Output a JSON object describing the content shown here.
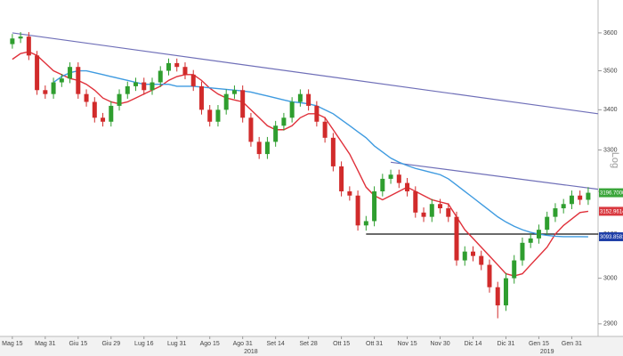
{
  "chart_data": {
    "type": "candlestick",
    "log_scale": true,
    "grid": false,
    "axis_title": "Log",
    "ylim": [
      2873,
      3689
    ],
    "yticks": [
      2900,
      3000,
      3100,
      3200,
      3300,
      3400,
      3500,
      3600
    ],
    "xlim": [
      -1.5,
      71.2
    ],
    "categories": [
      "Mag 15",
      null,
      null,
      null,
      "Mag 31",
      null,
      null,
      null,
      "Giu 15",
      null,
      null,
      null,
      "Giu 29",
      null,
      null,
      null,
      "Lug 16",
      null,
      null,
      null,
      "Lug 31",
      null,
      null,
      null,
      "Ago 15",
      null,
      null,
      null,
      "Ago 31",
      null,
      null,
      null,
      "Set 14",
      null,
      null,
      null,
      "Set 28",
      null,
      null,
      null,
      "Ott 15",
      null,
      null,
      null,
      "Ott 31",
      null,
      null,
      null,
      "Nov 15",
      null,
      null,
      null,
      "Nov 30",
      null,
      null,
      null,
      "Dic 14",
      null,
      null,
      null,
      "Dic 31",
      null,
      null,
      null,
      "Gen 15",
      null,
      null,
      null,
      "Gen 31",
      null,
      null
    ],
    "year_labels": [
      {
        "value": 29,
        "label": "2018"
      },
      {
        "value": 65,
        "label": "2019"
      }
    ],
    "up_color": "#2f9e2f",
    "down_color": "#d12b2b",
    "open": [
      3570,
      3585,
      3590,
      3540,
      3450,
      3440,
      3470,
      3480,
      3510,
      3440,
      3420,
      3380,
      3370,
      3410,
      3440,
      3460,
      3470,
      3450,
      3470,
      3500,
      3520,
      3510,
      3490,
      3460,
      3400,
      3370,
      3400,
      3440,
      3450,
      3380,
      3320,
      3290,
      3320,
      3360,
      3380,
      3420,
      3440,
      3410,
      3370,
      3330,
      3260,
      3200,
      3190,
      3120,
      3130,
      3200,
      3230,
      3240,
      3220,
      3200,
      3150,
      3140,
      3170,
      3160,
      3140,
      3040,
      3060,
      3050,
      3030,
      2980,
      2940,
      3000,
      3040,
      3080,
      3090,
      3110,
      3140,
      3160,
      3170,
      3190,
      3180
    ],
    "high": [
      3597,
      3602,
      3602,
      3552,
      3462,
      3482,
      3492,
      3522,
      3522,
      3452,
      3432,
      3392,
      3422,
      3452,
      3472,
      3482,
      3482,
      3482,
      3512,
      3532,
      3532,
      3522,
      3502,
      3472,
      3412,
      3412,
      3452,
      3462,
      3462,
      3392,
      3332,
      3332,
      3372,
      3392,
      3432,
      3452,
      3452,
      3422,
      3382,
      3342,
      3272,
      3212,
      3202,
      3142,
      3212,
      3242,
      3252,
      3252,
      3232,
      3212,
      3162,
      3182,
      3182,
      3172,
      3152,
      3072,
      3072,
      3062,
      3042,
      2992,
      3012,
      3052,
      3092,
      3102,
      3122,
      3152,
      3172,
      3182,
      3202,
      3202,
      3210
    ],
    "low": [
      3558,
      3573,
      3528,
      3438,
      3428,
      3428,
      3458,
      3468,
      3428,
      3408,
      3368,
      3358,
      3358,
      3398,
      3428,
      3448,
      3438,
      3438,
      3458,
      3488,
      3498,
      3478,
      3448,
      3388,
      3358,
      3358,
      3388,
      3428,
      3368,
      3308,
      3278,
      3278,
      3308,
      3348,
      3368,
      3408,
      3398,
      3358,
      3318,
      3248,
      3188,
      3178,
      3108,
      3108,
      3118,
      3188,
      3218,
      3208,
      3188,
      3138,
      3128,
      3128,
      3148,
      3128,
      3028,
      3028,
      3038,
      3018,
      2968,
      2912,
      2928,
      2988,
      3028,
      3068,
      3078,
      3098,
      3128,
      3148,
      3158,
      3168,
      3168
    ],
    "close": [
      3585,
      3590,
      3540,
      3450,
      3440,
      3470,
      3480,
      3510,
      3440,
      3420,
      3380,
      3370,
      3410,
      3440,
      3460,
      3470,
      3450,
      3470,
      3500,
      3520,
      3510,
      3490,
      3460,
      3400,
      3370,
      3400,
      3440,
      3450,
      3380,
      3320,
      3290,
      3320,
      3360,
      3380,
      3420,
      3440,
      3410,
      3370,
      3330,
      3260,
      3200,
      3190,
      3120,
      3130,
      3200,
      3230,
      3240,
      3220,
      3200,
      3150,
      3140,
      3170,
      3160,
      3140,
      3040,
      3060,
      3050,
      3030,
      2980,
      2940,
      3000,
      3040,
      3080,
      3090,
      3110,
      3140,
      3160,
      3170,
      3190,
      3180,
      3196.7
    ],
    "series": [
      {
        "color": "#e0303a",
        "values": [
          3530,
          3545,
          3550,
          3540,
          3520,
          3500,
          3490,
          3480,
          3475,
          3465,
          3450,
          3430,
          3420,
          3415,
          3420,
          3430,
          3440,
          3450,
          3460,
          3475,
          3485,
          3490,
          3490,
          3475,
          3455,
          3440,
          3430,
          3425,
          3420,
          3400,
          3380,
          3360,
          3350,
          3350,
          3360,
          3380,
          3390,
          3390,
          3380,
          3350,
          3320,
          3290,
          3250,
          3210,
          3190,
          3180,
          3190,
          3200,
          3210,
          3200,
          3190,
          3180,
          3175,
          3170,
          3140,
          3110,
          3090,
          3070,
          3050,
          3030,
          3010,
          3005,
          3010,
          3030,
          3050,
          3070,
          3100,
          3120,
          3135,
          3150,
          3152.96
        ]
      },
      {
        "color": "#3f9be0",
        "values": [
          null,
          null,
          null,
          null,
          null,
          3470,
          3485,
          3495,
          3500,
          3500,
          3495,
          3490,
          3485,
          3480,
          3475,
          3470,
          3465,
          3465,
          3465,
          3465,
          3460,
          3460,
          3460,
          3458,
          3456,
          3454,
          3452,
          3450,
          3448,
          3445,
          3440,
          3435,
          3430,
          3425,
          3420,
          3418,
          3415,
          3410,
          3400,
          3390,
          3375,
          3360,
          3345,
          3330,
          3310,
          3295,
          3280,
          3270,
          3262,
          3255,
          3250,
          3245,
          3240,
          3230,
          3215,
          3200,
          3185,
          3170,
          3155,
          3140,
          3128,
          3118,
          3110,
          3104,
          3100,
          3097,
          3095,
          3094,
          3094,
          3094,
          3093.86
        ]
      }
    ],
    "trendlines": [
      {
        "color": "#6f6fb8",
        "x": [
          0,
          71.2
        ],
        "values": [
          3600,
          3390
        ]
      },
      {
        "color": "#6f6fb8",
        "x": [
          46,
          71.2
        ],
        "values": [
          3270,
          3205
        ]
      },
      {
        "color": "#111111",
        "x": [
          43,
          71.2
        ],
        "values": [
          3100,
          3100
        ]
      }
    ],
    "markers": [
      {
        "value": 3196.7,
        "label": "3196.7000",
        "color": "#3aa53a"
      },
      {
        "value": 3152.9614,
        "label": "3152.9614",
        "color": "#d9383f"
      },
      {
        "value": 3093.8581,
        "label": "3093.8581",
        "color": "#1f3fa8"
      }
    ]
  }
}
